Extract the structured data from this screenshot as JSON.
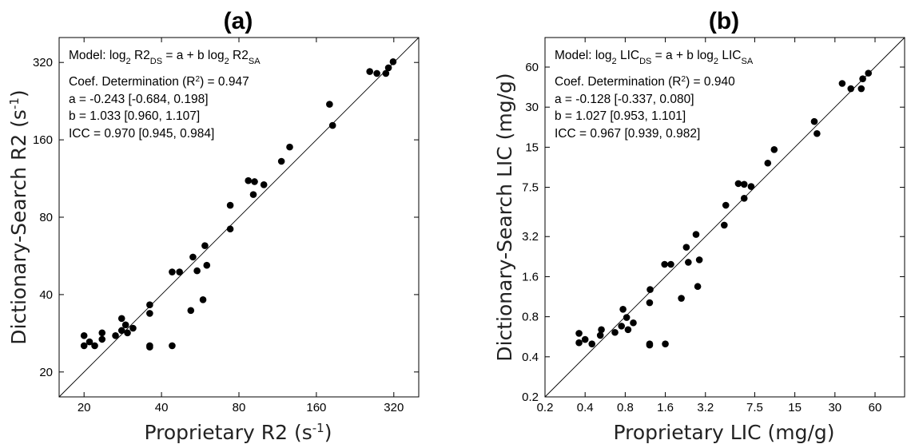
{
  "chart_data": [
    {
      "type": "scatter",
      "panel": "(a)",
      "xlabel_main": "Proprietary R2 (s",
      "xlabel_sup": "-1",
      "xlabel_tail": ")",
      "ylabel_main": "Dictionary-Search R2  (s",
      "ylabel_sup": "-1",
      "ylabel_tail": ")",
      "scale": "log2",
      "xlim": [
        16,
        400
      ],
      "ylim": [
        16,
        400
      ],
      "xticks": [
        20,
        40,
        80,
        160,
        320
      ],
      "yticks": [
        20,
        40,
        80,
        160,
        320
      ],
      "identity_line": true,
      "annotations": {
        "model": {
          "t1": "Model: log",
          "s1": "2",
          "t2": " R2",
          "s2": "DS",
          "t3": " = a + b log",
          "s3": "2",
          "t4": " R2",
          "s4": "SA"
        },
        "r2": {
          "t1": "Coef. Determination (R",
          "sup": "2",
          "t2": ") = 0.947"
        },
        "a": "a = -0.243 [-0.684, 0.198]",
        "b": "b = 1.033 [0.960, 1.107]",
        "icc": "ICC = 0.970 [0.945, 0.984]"
      },
      "points": [
        [
          20,
          25.3
        ],
        [
          20,
          27.7
        ],
        [
          21,
          26.2
        ],
        [
          22,
          25.3
        ],
        [
          23.5,
          26.8
        ],
        [
          23.5,
          28.4
        ],
        [
          26.5,
          27.7
        ],
        [
          28,
          29
        ],
        [
          28,
          32.3
        ],
        [
          29,
          30.5
        ],
        [
          29.5,
          28.4
        ],
        [
          31,
          29.6
        ],
        [
          36,
          25
        ],
        [
          36,
          25.3
        ],
        [
          36,
          33.8
        ],
        [
          36,
          36.5
        ],
        [
          44,
          25.3
        ],
        [
          44,
          49
        ],
        [
          47,
          49
        ],
        [
          52,
          34.7
        ],
        [
          53,
          56
        ],
        [
          55,
          49.5
        ],
        [
          58,
          38.2
        ],
        [
          59,
          62
        ],
        [
          60,
          52
        ],
        [
          74,
          72
        ],
        [
          74,
          89
        ],
        [
          87,
          111
        ],
        [
          91,
          98
        ],
        [
          92,
          110
        ],
        [
          100,
          107
        ],
        [
          117,
          132
        ],
        [
          126,
          150
        ],
        [
          180,
          220
        ],
        [
          185,
          182
        ],
        [
          258,
          295
        ],
        [
          275,
          290
        ],
        [
          298,
          290
        ],
        [
          305,
          305
        ],
        [
          318,
          322
        ]
      ]
    },
    {
      "type": "scatter",
      "panel": "(b)",
      "xlabel": "Proprietary LIC (mg/g)",
      "ylabel": "Dictionary-Search LIC (mg/g)",
      "scale": "log2",
      "xlim": [
        0.2,
        100
      ],
      "ylim": [
        0.2,
        100
      ],
      "xticks": [
        0.2,
        0.4,
        0.8,
        1.6,
        3.2,
        7.5,
        15,
        30,
        60
      ],
      "yticks": [
        0.2,
        0.4,
        0.8,
        1.6,
        3.2,
        7.5,
        15,
        30,
        60
      ],
      "xtick_labels": [
        "0.2",
        "0.4",
        "0.8",
        "1.6",
        "3.2",
        "7.5",
        "15",
        "30",
        "60"
      ],
      "ytick_labels": [
        "0.2",
        "0.4",
        "0.8",
        "1.6",
        "3.2",
        "7.5",
        "15",
        "30",
        "60"
      ],
      "identity_line": true,
      "annotations": {
        "model": {
          "t1": "Model: log",
          "s1": "2",
          "t2": " LIC",
          "s2": "DS",
          "t3": " = a + b log",
          "s3": "2",
          "t4": " LIC",
          "s4": "SA"
        },
        "r2": {
          "t1": "Coef. Determination (R",
          "sup": "2",
          "t2": ") = 0.940"
        },
        "a": "a = -0.128 [-0.337, 0.080]",
        "b": "b = 1.027 [0.953, 1.101]",
        "icc": "ICC = 0.967 [0.939, 0.982]"
      },
      "points": [
        [
          0.36,
          0.6
        ],
        [
          0.36,
          0.51
        ],
        [
          0.4,
          0.54
        ],
        [
          0.45,
          0.5
        ],
        [
          0.52,
          0.58
        ],
        [
          0.53,
          0.64
        ],
        [
          0.67,
          0.61
        ],
        [
          0.75,
          0.68
        ],
        [
          0.77,
          0.91
        ],
        [
          0.82,
          0.79
        ],
        [
          0.84,
          0.64
        ],
        [
          0.92,
          0.72
        ],
        [
          1.22,
          0.5
        ],
        [
          1.22,
          0.49
        ],
        [
          1.22,
          1.02
        ],
        [
          1.23,
          1.28
        ],
        [
          1.58,
          1.98
        ],
        [
          1.6,
          0.5
        ],
        [
          1.76,
          1.98
        ],
        [
          2.11,
          1.1
        ],
        [
          2.3,
          2.66
        ],
        [
          2.38,
          2.05
        ],
        [
          2.72,
          3.32
        ],
        [
          2.8,
          1.35
        ],
        [
          2.88,
          2.14
        ],
        [
          4.43,
          3.9
        ],
        [
          4.55,
          5.5
        ],
        [
          5.65,
          8.0
        ],
        [
          6.25,
          7.9
        ],
        [
          6.25,
          6.2
        ],
        [
          7.05,
          7.6
        ],
        [
          9.4,
          11.4
        ],
        [
          10.5,
          14.4
        ],
        [
          21.0,
          23.4
        ],
        [
          22.0,
          19.0
        ],
        [
          34.0,
          45.2
        ],
        [
          39.5,
          41.3
        ],
        [
          47.3,
          41.3
        ],
        [
          48.5,
          49.0
        ],
        [
          53.5,
          54.0
        ]
      ]
    }
  ]
}
